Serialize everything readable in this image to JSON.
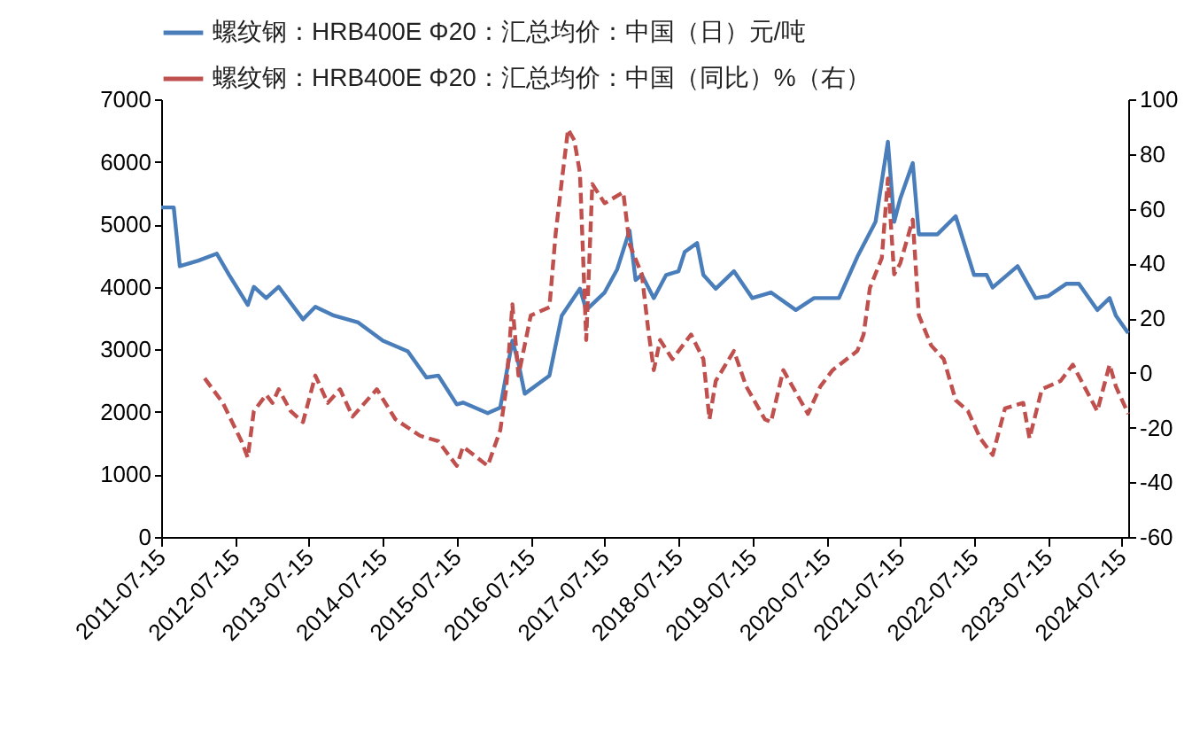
{
  "chart_data": {
    "type": "line",
    "legend": "top",
    "xlim": [
      "2011-07-15",
      "2024-08-15"
    ],
    "xticks": [
      "2011-07-15",
      "2012-07-15",
      "2013-07-15",
      "2014-07-15",
      "2015-07-15",
      "2016-07-15",
      "2017-07-15",
      "2018-07-15",
      "2019-07-15",
      "2020-07-15",
      "2021-07-15",
      "2022-07-15",
      "2023-07-15",
      "2024-07-15"
    ],
    "ylim": [
      0,
      7000
    ],
    "yticks": [
      0,
      1000,
      2000,
      3000,
      4000,
      5000,
      6000,
      7000
    ],
    "y2lim": [
      -60,
      100
    ],
    "y2ticks": [
      -60,
      -40,
      -20,
      0,
      20,
      40,
      60,
      80,
      100
    ],
    "series": [
      {
        "name": "螺纹钢：HRB400E  Φ20：汇总均价：中国（日）元/吨",
        "color": "#4a7ebb",
        "line_style": "solid",
        "x": [
          "2011-07-15",
          "2011-09",
          "2011-10",
          "2012-01",
          "2012-04",
          "2012-06",
          "2012-09",
          "2012-10",
          "2012-12",
          "2013-02",
          "2013-06",
          "2013-08",
          "2013-11",
          "2014-03",
          "2014-07",
          "2014-11",
          "2015-02",
          "2015-04",
          "2015-07",
          "2015-08",
          "2015-12",
          "2016-02",
          "2016-04",
          "2016-05",
          "2016-06",
          "2016-10",
          "2016-12",
          "2017-03",
          "2017-04",
          "2017-07",
          "2017-09",
          "2017-11",
          "2017-12",
          "2018-01",
          "2018-03",
          "2018-05",
          "2018-07",
          "2018-08",
          "2018-10",
          "2018-11",
          "2019-01",
          "2019-04",
          "2019-07",
          "2019-10",
          "2020-02",
          "2020-05",
          "2020-09",
          "2020-12",
          "2021-03",
          "2021-05",
          "2021-06",
          "2021-07",
          "2021-09",
          "2021-10",
          "2022-01",
          "2022-04",
          "2022-07",
          "2022-09",
          "2022-10",
          "2023-02",
          "2023-05",
          "2023-07",
          "2023-10",
          "2023-12",
          "2024-03",
          "2024-05",
          "2024-06",
          "2024-08"
        ],
        "values": [
          5270,
          5270,
          4330,
          4420,
          4530,
          4190,
          3710,
          4000,
          3820,
          4000,
          3480,
          3680,
          3540,
          3430,
          3140,
          2970,
          2550,
          2580,
          2120,
          2150,
          1980,
          2070,
          3140,
          2780,
          2290,
          2580,
          3540,
          3970,
          3630,
          3910,
          4280,
          4900,
          4110,
          4190,
          3820,
          4190,
          4250,
          4560,
          4700,
          4190,
          3970,
          4250,
          3820,
          3910,
          3630,
          3820,
          3820,
          4480,
          5040,
          6320,
          5040,
          5410,
          5980,
          4840,
          4840,
          5130,
          4190,
          4190,
          3990,
          4330,
          3820,
          3850,
          4050,
          4050,
          3630,
          3820,
          3540,
          3260
        ]
      },
      {
        "name": "螺纹钢：HRB400E  Φ20：汇总均价：中国（同比）%（右）",
        "color": "#c0504d",
        "line_style": "dashed",
        "axis": "y2",
        "x": [
          "2012-02",
          "2012-05",
          "2012-08",
          "2012-09",
          "2012-10",
          "2012-12",
          "2013-01",
          "2013-02",
          "2013-04",
          "2013-06",
          "2013-08",
          "2013-10",
          "2013-12",
          "2014-02",
          "2014-06",
          "2014-09",
          "2015-01",
          "2015-04",
          "2015-07",
          "2015-08",
          "2015-12",
          "2016-02",
          "2016-03",
          "2016-04",
          "2016-05",
          "2016-07",
          "2016-10",
          "2016-11",
          "2016-12",
          "2017-01",
          "2017-02",
          "2017-03",
          "2017-04",
          "2017-05",
          "2017-07",
          "2017-10",
          "2017-11",
          "2018-01",
          "2018-02",
          "2018-03",
          "2018-04",
          "2018-06",
          "2018-09",
          "2018-11",
          "2018-12",
          "2019-01",
          "2019-04",
          "2019-06",
          "2019-09",
          "2019-10",
          "2019-12",
          "2020-04",
          "2020-06",
          "2020-08",
          "2020-12",
          "2021-01",
          "2021-02",
          "2021-04",
          "2021-05",
          "2021-06",
          "2021-07",
          "2021-09",
          "2021-10",
          "2021-12",
          "2022-02",
          "2022-04",
          "2022-06",
          "2022-08",
          "2022-10",
          "2022-12",
          "2023-03",
          "2023-04",
          "2023-06",
          "2023-09",
          "2023-11",
          "2024-03",
          "2024-05",
          "2024-06",
          "2024-08"
        ],
        "values": [
          -2,
          -11,
          -25,
          -31,
          -14,
          -8,
          -11,
          -6,
          -14,
          -18,
          -1,
          -11,
          -6,
          -16,
          -6,
          -17,
          -23,
          -25,
          -34,
          -27,
          -34,
          -21,
          -6,
          25,
          -1,
          21,
          24,
          51,
          70,
          89,
          85,
          73,
          12,
          69,
          62,
          66,
          47,
          36,
          16,
          1,
          12,
          5,
          14,
          5,
          -17,
          -3,
          8,
          -5,
          -17,
          -18,
          1,
          -15,
          -5,
          1,
          8,
          14,
          31,
          42,
          71,
          36,
          40,
          56,
          21,
          10,
          5,
          -10,
          -14,
          -24,
          -30,
          -13,
          -11,
          -24,
          -6,
          -3,
          3,
          -14,
          3,
          -5,
          -15
        ]
      }
    ]
  }
}
